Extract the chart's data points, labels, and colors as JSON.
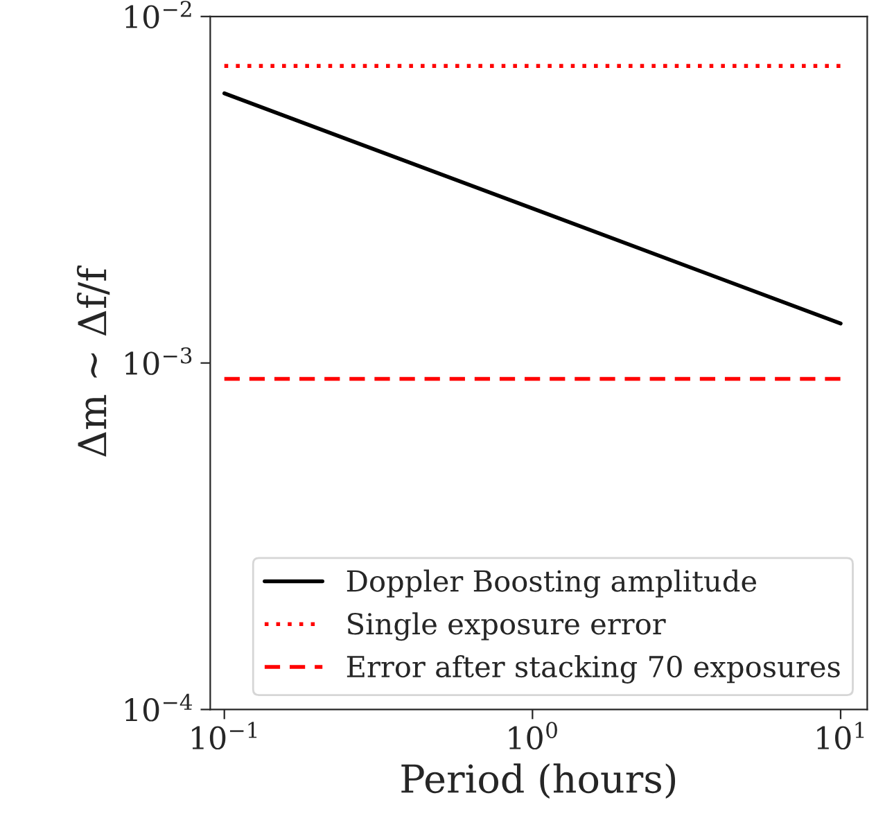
{
  "chart_data": {
    "type": "line",
    "xlabel": "Period (hours)",
    "ylabel": "Δm ∼ Δf/f",
    "log": "xy",
    "xlim": [
      0.09,
      12.2
    ],
    "ylim": [
      0.0001,
      0.01
    ],
    "xticks": [
      {
        "value": 0.1,
        "label": "10$^{−1}$"
      },
      {
        "value": 1,
        "label": "10$^{0}$"
      },
      {
        "value": 10,
        "label": "10$^{1}$"
      }
    ],
    "yticks": [
      {
        "value": 0.0001,
        "label": "10$^{−4}$"
      },
      {
        "value": 0.001,
        "label": "10$^{−3}$"
      },
      {
        "value": 0.01,
        "label": "10$^{−2}$"
      }
    ],
    "grid": false,
    "legend": "bottom right",
    "x": [
      0.1,
      10
    ],
    "series": [
      {
        "name": "Doppler Boosting amplitude",
        "color": "#000000",
        "line_style": "solid",
        "values": [
          0.006,
          0.0013
        ]
      },
      {
        "name": "Single exposure error",
        "color": "#ff0000",
        "line_style": "dotted",
        "values": [
          0.0072,
          0.0072
        ]
      },
      {
        "name": "Error after stacking 70 exposures",
        "color": "#ff0000",
        "line_style": "dashed",
        "values": [
          0.0009,
          0.0009
        ]
      }
    ]
  }
}
